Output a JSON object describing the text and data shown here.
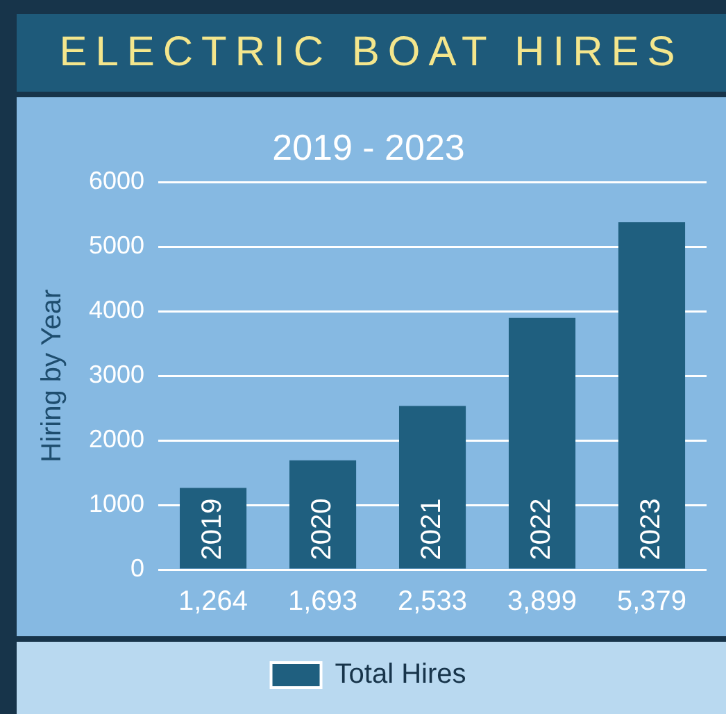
{
  "chart_data": {
    "type": "bar",
    "title": "ELECTRIC BOAT HIRES",
    "subtitle": "2019 - 2023",
    "ylabel": "Hiring by Year",
    "categories": [
      "2019",
      "2020",
      "2021",
      "2022",
      "2023"
    ],
    "series": [
      {
        "name": "Total Hires",
        "color": "#1f5f7f",
        "values": [
          1264,
          1693,
          2533,
          3899,
          5379
        ],
        "value_labels": [
          "1,264",
          "1,693",
          "2,533",
          "3,899",
          "5,379"
        ]
      }
    ],
    "ylim": [
      0,
      6000
    ],
    "yticks": [
      0,
      1000,
      2000,
      3000,
      4000,
      5000,
      6000
    ],
    "grid": "y",
    "legend": "bottom"
  }
}
